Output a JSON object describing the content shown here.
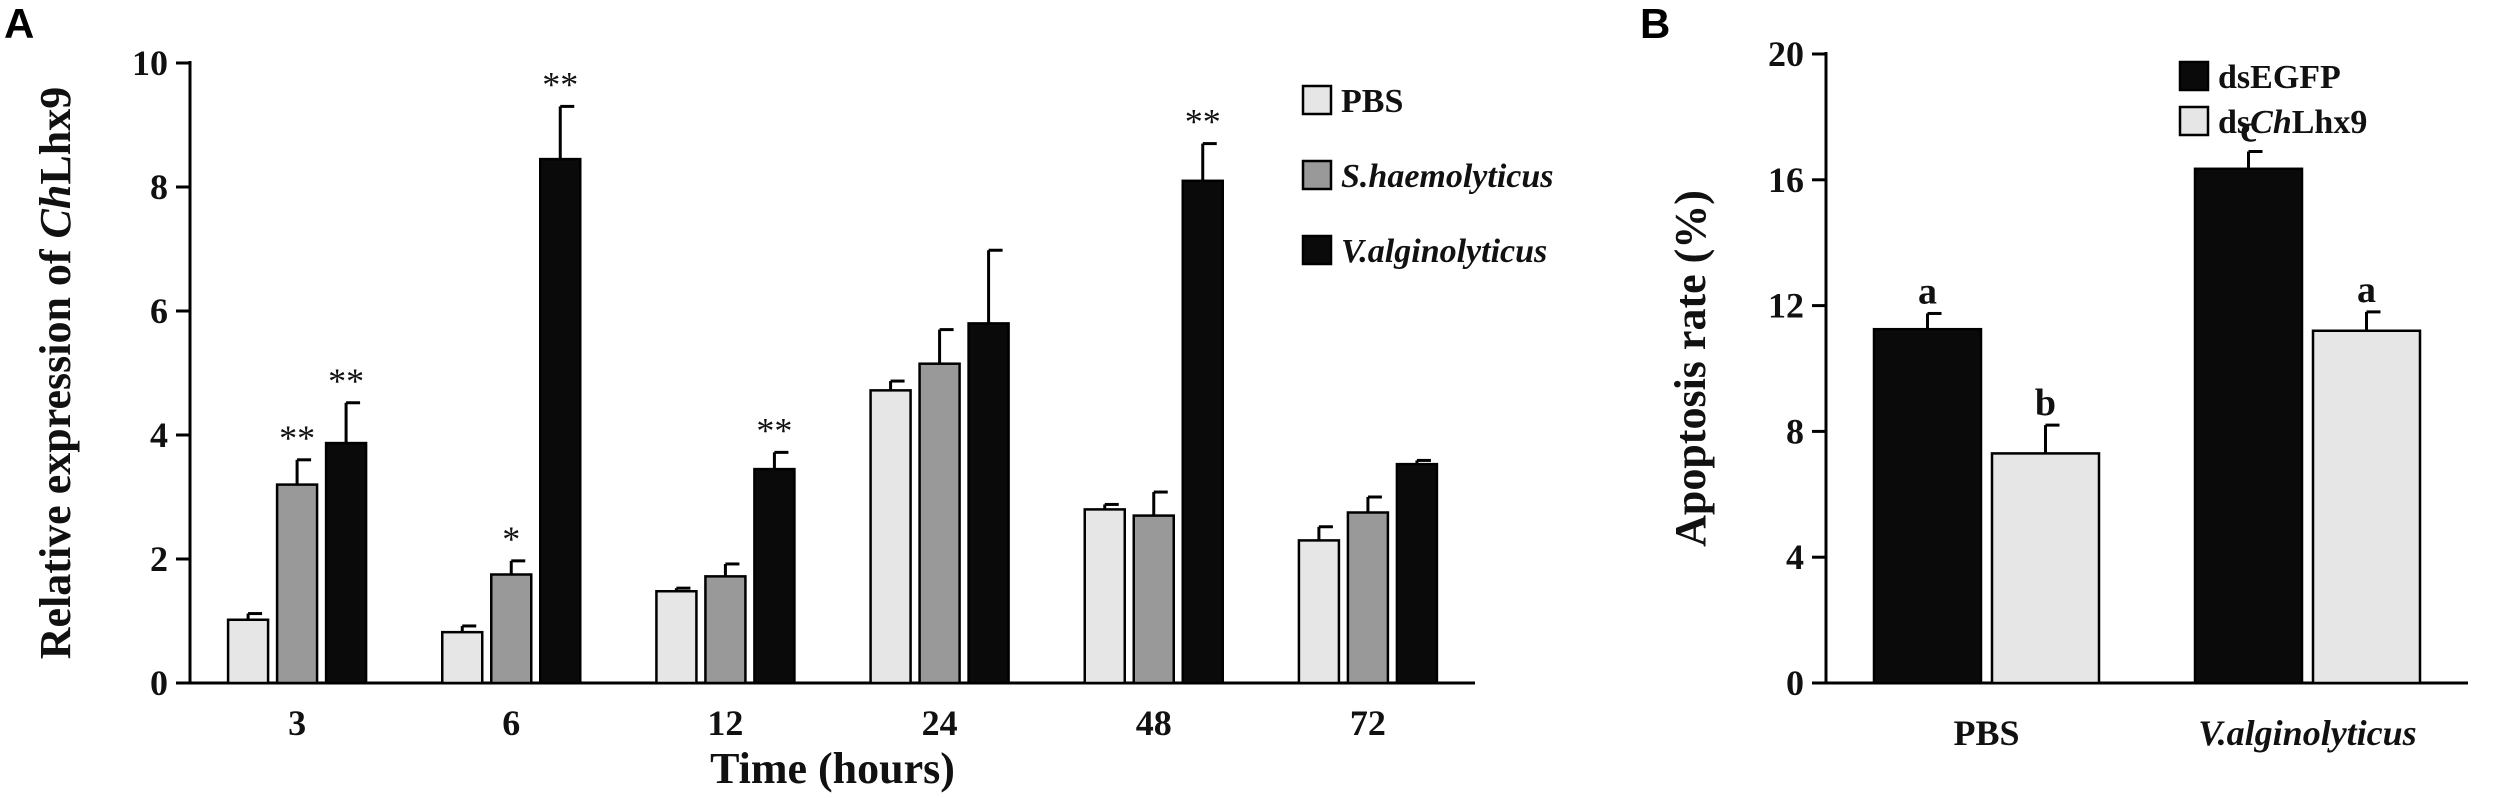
{
  "figure": {
    "panel_a_letter": "A",
    "panel_b_letter": "B"
  },
  "colors": {
    "PBS": "#e6e6e6",
    "S.haemolyticus": "#999999",
    "V.alginolyticus": "#0a0a0a",
    "dsEGFP": "#0a0a0a",
    "dsChLhx9": "#e6e6e6",
    "axis": "#000000"
  },
  "chart_data": [
    {
      "panel": "A",
      "type": "bar",
      "title": "",
      "xlabel": "Time (hours)",
      "ylabel": "Relative expression of ChLhx9",
      "ylabel_parts": [
        "Relative expression of ",
        "Ch",
        "Lhx9"
      ],
      "ylim": [
        0,
        10
      ],
      "yticks": [
        "0",
        "2",
        "4",
        "6",
        "8",
        "10"
      ],
      "categories": [
        "3",
        "6",
        "12",
        "24",
        "48",
        "72"
      ],
      "legend_position": "top-right",
      "series": [
        {
          "name": "PBS",
          "values": [
            1.02,
            0.82,
            1.48,
            4.72,
            2.8,
            2.3
          ],
          "errors": [
            0.1,
            0.1,
            0.05,
            0.15,
            0.08,
            0.22
          ],
          "labels": [
            "",
            "",
            "",
            "",
            "",
            ""
          ]
        },
        {
          "name": "S.haemolyticus",
          "values": [
            3.2,
            1.75,
            1.72,
            5.15,
            2.7,
            2.75
          ],
          "errors": [
            0.4,
            0.22,
            0.2,
            0.55,
            0.38,
            0.25
          ],
          "labels": [
            "**",
            "*",
            "",
            "",
            "",
            ""
          ]
        },
        {
          "name": "V.alginolyticus",
          "values": [
            3.87,
            8.45,
            3.45,
            5.8,
            8.1,
            3.53
          ],
          "errors": [
            0.65,
            0.85,
            0.27,
            1.18,
            0.6,
            0.06
          ],
          "labels": [
            "**",
            "**",
            "**",
            "",
            "**",
            ""
          ]
        }
      ]
    },
    {
      "panel": "B",
      "type": "bar",
      "title": "",
      "xlabel": "",
      "ylabel": "Apoptosis rate (%)",
      "ylim": [
        0,
        20
      ],
      "yticks": [
        "0",
        "4",
        "8",
        "12",
        "16",
        "20"
      ],
      "categories": [
        "PBS",
        "V.alginolyticus"
      ],
      "legend_position": "top-right",
      "series": [
        {
          "name": "dsEGFP",
          "name_parts": [
            "ds",
            "EGFP"
          ],
          "values": [
            11.25,
            16.35
          ],
          "errors": [
            0.5,
            0.55
          ],
          "labels": [
            "a",
            "c"
          ]
        },
        {
          "name": "dsChLhx9",
          "name_parts": [
            "ds",
            "Ch",
            "Lhx9"
          ],
          "values": [
            7.3,
            11.2
          ],
          "errors": [
            0.9,
            0.6
          ],
          "labels": [
            "b",
            "a"
          ]
        }
      ]
    }
  ]
}
